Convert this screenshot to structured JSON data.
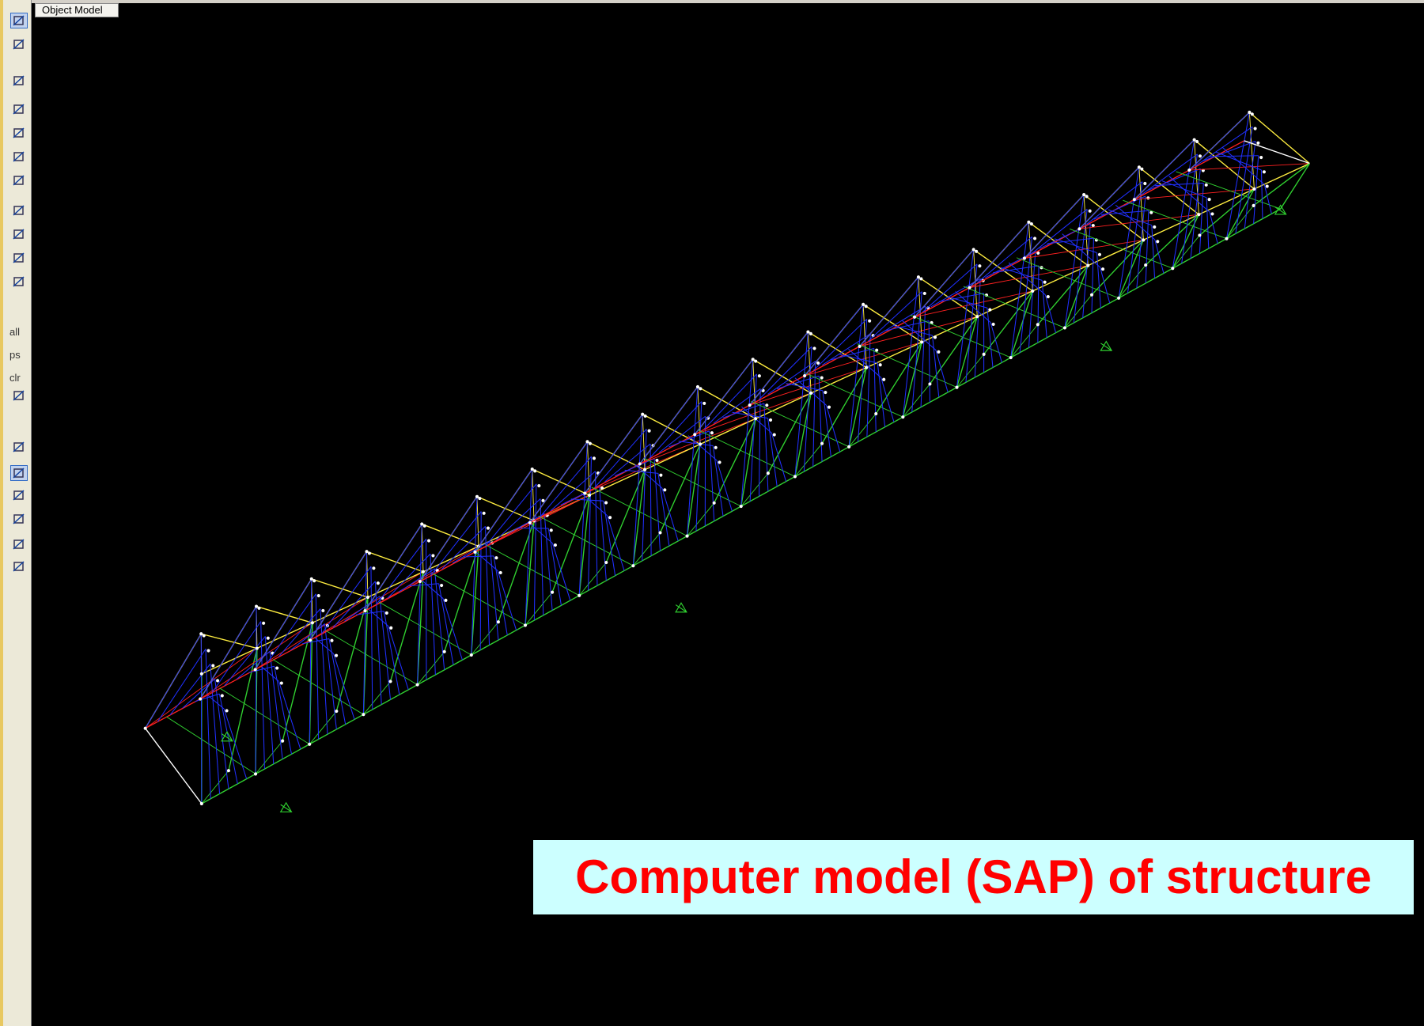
{
  "window": {
    "tab_title": "Object Model"
  },
  "toolbar": {
    "labels": [
      "all",
      "ps",
      "clr"
    ]
  },
  "caption": "Computer model (SAP) of structure"
}
